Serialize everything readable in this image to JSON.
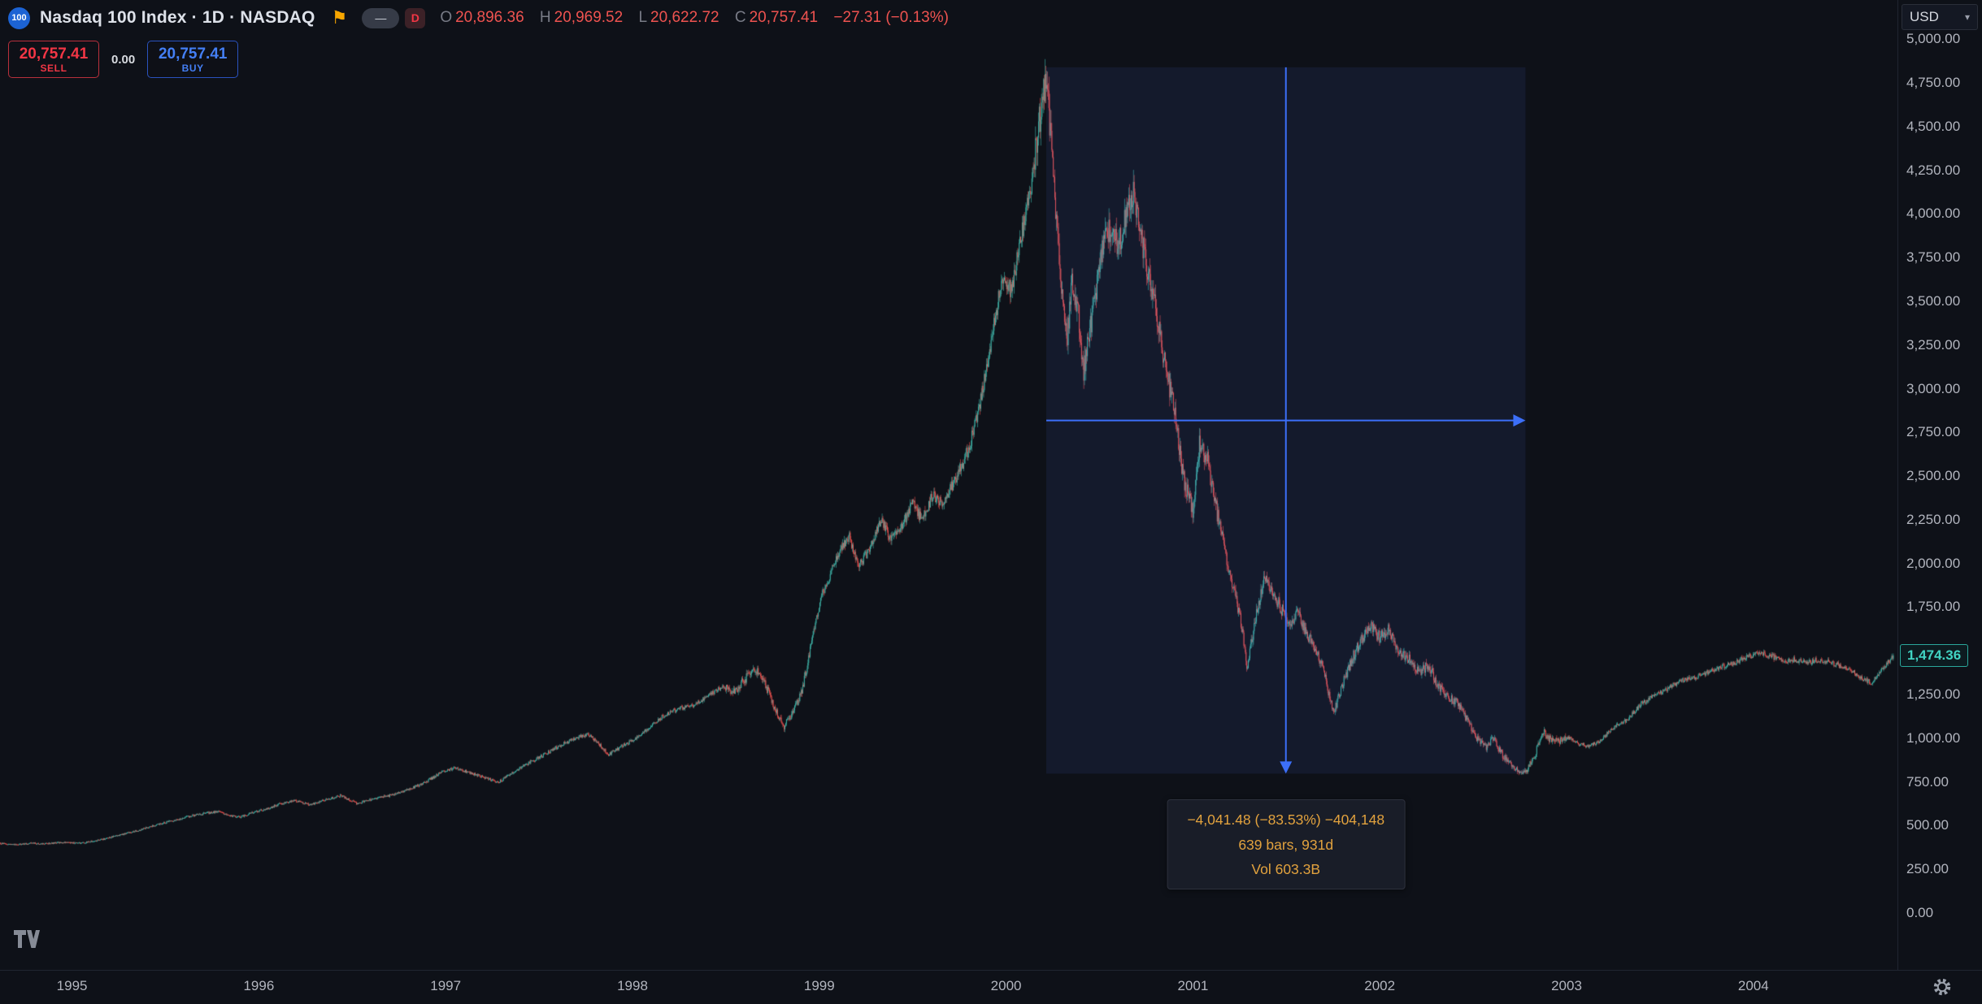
{
  "header": {
    "symbol_badge": "100",
    "title": "Nasdaq 100 Index · 1D · NASDAQ",
    "dash_badge": "—",
    "interval_badge": "D",
    "ohlc": {
      "o_label": "O",
      "o_value": "20,896.36",
      "h_label": "H",
      "h_value": "20,969.52",
      "l_label": "L",
      "l_value": "20,622.72",
      "c_label": "C",
      "c_value": "20,757.41",
      "change": "−27.31 (−0.13%)"
    }
  },
  "trade_panel": {
    "sell_price": "20,757.41",
    "sell_label": "SELL",
    "spread": "0.00",
    "buy_price": "20,757.41",
    "buy_label": "BUY"
  },
  "price_scale": {
    "currency": "USD",
    "labels": [
      "5,000.00",
      "4,750.00",
      "4,500.00",
      "4,250.00",
      "4,000.00",
      "3,750.00",
      "3,500.00",
      "3,250.00",
      "3,000.00",
      "2,750.00",
      "2,500.00",
      "2,250.00",
      "2,000.00",
      "1,750.00",
      "1,500.00",
      "1,250.00",
      "1,000.00",
      "750.00",
      "500.00",
      "250.00",
      "0.00"
    ],
    "last_price": "1,474.36"
  },
  "time_scale": {
    "years": [
      "1995",
      "1996",
      "1997",
      "1998",
      "1999",
      "2000",
      "2001",
      "2002",
      "2003",
      "2004"
    ]
  },
  "measure_tooltip": {
    "line1": "−4,041.48 (−83.53%) −404,148",
    "line2": "639 bars, 931d",
    "line3": "Vol 603.3B"
  },
  "colors": {
    "up": "#3fb5a9",
    "down": "#ef5350",
    "accent_blue": "#3c6ff8",
    "sell_red": "#f23645",
    "buy_blue": "#447ff5",
    "tooltip_text": "#e2a23e",
    "background": "#0e1118",
    "measure_fill": "rgba(90,120,255,0.09)"
  },
  "chart_data": {
    "type": "candlestick",
    "symbol": "Nasdaq 100 Index",
    "interval": "1D",
    "currency": "USD",
    "last_price": 1474.36,
    "y_axis": {
      "min": 0,
      "max": 5000,
      "tick_step": 250
    },
    "x_axis": {
      "start_year": 1994.61,
      "end_year": 2004.75
    },
    "measure": {
      "start_time": 2000.215,
      "start_price": 4838.9,
      "end_time": 2002.78,
      "end_price": 797.4,
      "change": -4041.48,
      "change_pct": -83.53,
      "bars": 639,
      "days": 931,
      "volume": "603.3B"
    },
    "anchors": [
      [
        1994.61,
        398
      ],
      [
        1994.7,
        390
      ],
      [
        1994.78,
        400
      ],
      [
        1994.85,
        396
      ],
      [
        1994.95,
        404
      ],
      [
        1995.05,
        400
      ],
      [
        1995.15,
        418
      ],
      [
        1995.25,
        445
      ],
      [
        1995.35,
        472
      ],
      [
        1995.45,
        505
      ],
      [
        1995.55,
        532
      ],
      [
        1995.62,
        552
      ],
      [
        1995.7,
        568
      ],
      [
        1995.78,
        582
      ],
      [
        1995.83,
        560
      ],
      [
        1995.9,
        548
      ],
      [
        1995.97,
        576
      ],
      [
        1996.05,
        598
      ],
      [
        1996.12,
        628
      ],
      [
        1996.2,
        642
      ],
      [
        1996.28,
        618
      ],
      [
        1996.36,
        648
      ],
      [
        1996.44,
        672
      ],
      [
        1996.52,
        628
      ],
      [
        1996.6,
        648
      ],
      [
        1996.7,
        672
      ],
      [
        1996.8,
        706
      ],
      [
        1996.88,
        742
      ],
      [
        1996.97,
        800
      ],
      [
        1997.05,
        828
      ],
      [
        1997.12,
        806
      ],
      [
        1997.2,
        778
      ],
      [
        1997.28,
        748
      ],
      [
        1997.36,
        802
      ],
      [
        1997.45,
        862
      ],
      [
        1997.55,
        918
      ],
      [
        1997.62,
        964
      ],
      [
        1997.7,
        1002
      ],
      [
        1997.76,
        1024
      ],
      [
        1997.82,
        968
      ],
      [
        1997.87,
        906
      ],
      [
        1997.93,
        944
      ],
      [
        1998.0,
        988
      ],
      [
        1998.08,
        1052
      ],
      [
        1998.16,
        1124
      ],
      [
        1998.24,
        1168
      ],
      [
        1998.32,
        1186
      ],
      [
        1998.4,
        1238
      ],
      [
        1998.48,
        1296
      ],
      [
        1998.54,
        1262
      ],
      [
        1998.6,
        1336
      ],
      [
        1998.66,
        1398
      ],
      [
        1998.71,
        1316
      ],
      [
        1998.76,
        1172
      ],
      [
        1998.81,
        1066
      ],
      [
        1998.86,
        1142
      ],
      [
        1998.91,
        1286
      ],
      [
        1998.96,
        1556
      ],
      [
        1999.01,
        1812
      ],
      [
        1999.06,
        1942
      ],
      [
        1999.11,
        2066
      ],
      [
        1999.16,
        2152
      ],
      [
        1999.21,
        1986
      ],
      [
        1999.27,
        2088
      ],
      [
        1999.33,
        2256
      ],
      [
        1999.38,
        2146
      ],
      [
        1999.44,
        2212
      ],
      [
        1999.5,
        2342
      ],
      [
        1999.55,
        2246
      ],
      [
        1999.61,
        2398
      ],
      [
        1999.66,
        2336
      ],
      [
        1999.72,
        2462
      ],
      [
        1999.78,
        2596
      ],
      [
        1999.83,
        2772
      ],
      [
        1999.88,
        3026
      ],
      [
        1999.93,
        3336
      ],
      [
        1999.98,
        3642
      ],
      [
        2000.03,
        3562
      ],
      [
        2000.08,
        3866
      ],
      [
        2000.13,
        4126
      ],
      [
        2000.18,
        4546
      ],
      [
        2000.215,
        4816
      ],
      [
        2000.245,
        4346
      ],
      [
        2000.27,
        3966
      ],
      [
        2000.3,
        3546
      ],
      [
        2000.325,
        3282
      ],
      [
        2000.355,
        3616
      ],
      [
        2000.385,
        3446
      ],
      [
        2000.415,
        3106
      ],
      [
        2000.45,
        3342
      ],
      [
        2000.5,
        3706
      ],
      [
        2000.55,
        3922
      ],
      [
        2000.6,
        3802
      ],
      [
        2000.645,
        4022
      ],
      [
        2000.68,
        4136
      ],
      [
        2000.72,
        3892
      ],
      [
        2000.76,
        3662
      ],
      [
        2000.81,
        3406
      ],
      [
        2000.86,
        3092
      ],
      [
        2000.9,
        2878
      ],
      [
        2000.95,
        2482
      ],
      [
        2001.0,
        2302
      ],
      [
        2001.035,
        2686
      ],
      [
        2001.08,
        2586
      ],
      [
        2001.13,
        2286
      ],
      [
        2001.18,
        2022
      ],
      [
        2001.23,
        1802
      ],
      [
        2001.26,
        1646
      ],
      [
        2001.29,
        1396
      ],
      [
        2001.34,
        1712
      ],
      [
        2001.385,
        1922
      ],
      [
        2001.43,
        1836
      ],
      [
        2001.47,
        1746
      ],
      [
        2001.52,
        1652
      ],
      [
        2001.56,
        1712
      ],
      [
        2001.61,
        1596
      ],
      [
        2001.66,
        1492
      ],
      [
        2001.7,
        1402
      ],
      [
        2001.73,
        1242
      ],
      [
        2001.755,
        1146
      ],
      [
        2001.8,
        1306
      ],
      [
        2001.85,
        1452
      ],
      [
        2001.9,
        1556
      ],
      [
        2001.95,
        1646
      ],
      [
        2002.0,
        1578
      ],
      [
        2002.05,
        1622
      ],
      [
        2002.1,
        1502
      ],
      [
        2002.16,
        1446
      ],
      [
        2002.21,
        1376
      ],
      [
        2002.26,
        1422
      ],
      [
        2002.31,
        1302
      ],
      [
        2002.36,
        1246
      ],
      [
        2002.42,
        1196
      ],
      [
        2002.47,
        1096
      ],
      [
        2002.52,
        996
      ],
      [
        2002.57,
        946
      ],
      [
        2002.61,
        1002
      ],
      [
        2002.66,
        896
      ],
      [
        2002.71,
        846
      ],
      [
        2002.76,
        798
      ],
      [
        2002.79,
        822
      ],
      [
        2002.83,
        902
      ],
      [
        2002.87,
        1046
      ],
      [
        2002.91,
        996
      ],
      [
        2002.96,
        986
      ],
      [
        2003.01,
        1004
      ],
      [
        2003.06,
        968
      ],
      [
        2003.12,
        956
      ],
      [
        2003.18,
        982
      ],
      [
        2003.24,
        1052
      ],
      [
        2003.32,
        1102
      ],
      [
        2003.4,
        1198
      ],
      [
        2003.48,
        1248
      ],
      [
        2003.56,
        1296
      ],
      [
        2003.64,
        1342
      ],
      [
        2003.72,
        1358
      ],
      [
        2003.8,
        1402
      ],
      [
        2003.88,
        1426
      ],
      [
        2003.96,
        1462
      ],
      [
        2004.04,
        1492
      ],
      [
        2004.1,
        1468
      ],
      [
        2004.16,
        1442
      ],
      [
        2004.22,
        1452
      ],
      [
        2004.28,
        1432
      ],
      [
        2004.34,
        1448
      ],
      [
        2004.4,
        1438
      ],
      [
        2004.46,
        1416
      ],
      [
        2004.52,
        1388
      ],
      [
        2004.58,
        1346
      ],
      [
        2004.63,
        1316
      ],
      [
        2004.68,
        1386
      ],
      [
        2004.72,
        1436
      ],
      [
        2004.75,
        1474.36
      ]
    ]
  }
}
